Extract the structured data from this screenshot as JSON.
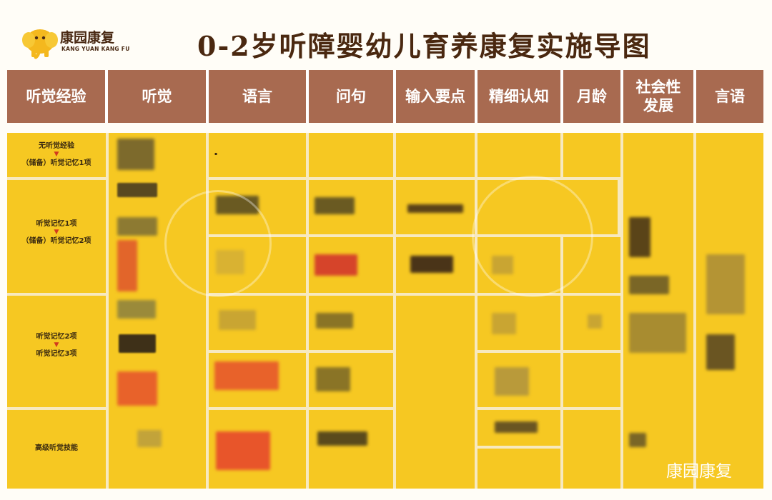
{
  "logo": {
    "name_cn": "康园康复",
    "name_en": "KANG YUAN KANG FU"
  },
  "title": "0-2岁听障婴幼儿育养康复实施导图",
  "headers": [
    "听觉经验",
    "听觉",
    "语言",
    "问句",
    "输入要点",
    "精细认知",
    "月龄",
    "社会性发展",
    "言语"
  ],
  "experience": [
    {
      "lines": [
        "无听觉经验",
        "（储备）听觉记忆1项"
      ]
    },
    {
      "lines": [
        "听觉记忆1项",
        "（储备）听觉记忆2项"
      ]
    },
    {
      "lines": [
        "听觉记忆2项",
        "听觉记忆3项"
      ]
    },
    {
      "lines": [
        "高级听觉技能"
      ]
    }
  ],
  "watermark_text": "康园康复",
  "colors": {
    "header_bg": "#a86a50",
    "cell_bg": "#f6c822",
    "title": "#4a2810",
    "arrow": "#d23a1e"
  }
}
